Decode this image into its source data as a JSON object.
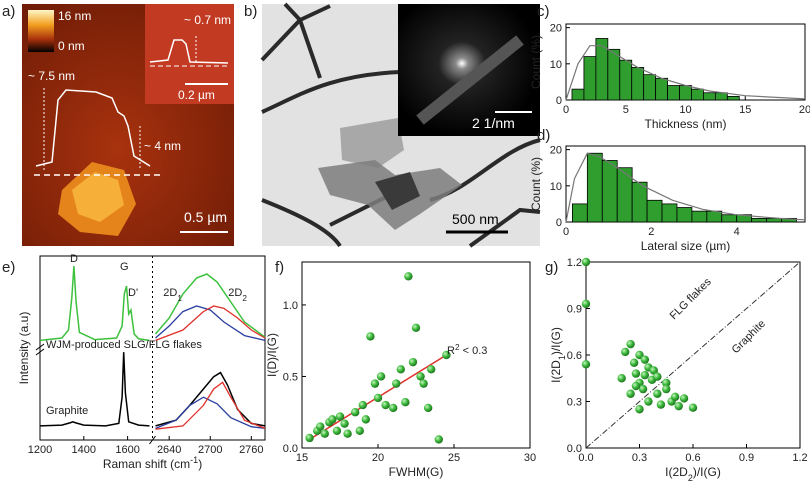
{
  "afm": {
    "label": "a)",
    "colorbar": [
      "16 nm",
      "0 nm"
    ],
    "height_labels": [
      "~ 7.5 nm",
      "~ 4 nm"
    ],
    "inset_height": "~ 0.7 nm",
    "inset_scale": "0.2 µm",
    "scale": "0.5 µm"
  },
  "tem": {
    "label": "b)",
    "diffraction_scale": "2 1/nm",
    "scale": "500 nm"
  },
  "chart_data": [
    {
      "type": "histogram",
      "label": "c)",
      "xlabel": "Thickness (nm)",
      "ylabel": "Count (%)",
      "bins": [
        0.5,
        1.5,
        2.5,
        3.5,
        4.5,
        5.5,
        6.5,
        7.5,
        8.5,
        9.5,
        10.5,
        11.5,
        12.5,
        13.5,
        14.5
      ],
      "values": [
        3,
        12,
        17,
        14,
        11,
        9,
        7,
        6,
        4,
        4,
        3,
        2,
        2,
        1
      ],
      "color": "#2f9e2f",
      "fit": {
        "x": [
          0,
          1,
          2,
          3,
          4,
          6,
          8,
          10,
          12,
          15,
          20
        ],
        "y": [
          0,
          10,
          15,
          15,
          13,
          9,
          6,
          4,
          2.5,
          1.2,
          0.3
        ],
        "color": "#777777"
      },
      "xlim": [
        0,
        20
      ],
      "ylim": [
        0,
        21
      ],
      "xticks": [
        0,
        5,
        10,
        15,
        20
      ],
      "yticks": [
        0,
        10,
        20
      ]
    },
    {
      "type": "histogram",
      "label": "d)",
      "xlabel": "Lateral size (µm)",
      "ylabel": "Count (%)",
      "bins": [
        0.15,
        0.5,
        0.85,
        1.2,
        1.55,
        1.9,
        2.25,
        2.6,
        2.95,
        3.3,
        3.65,
        4.0,
        4.35,
        4.7,
        5.05,
        5.4
      ],
      "values": [
        5,
        19,
        17,
        15,
        11,
        6,
        5,
        4,
        3,
        3,
        2,
        2,
        1,
        1,
        1
      ],
      "color": "#2f9e2f",
      "fit": {
        "x": [
          0,
          0.2,
          0.5,
          0.8,
          1.2,
          1.8,
          2.5,
          3.2,
          4,
          5,
          5.6
        ],
        "y": [
          0,
          12,
          19,
          18,
          15,
          10,
          6,
          3.5,
          2,
          1,
          0.6
        ],
        "color": "#777777"
      },
      "xlim": [
        0,
        5.6
      ],
      "ylim": [
        0,
        21
      ],
      "xticks": [
        0,
        2,
        4
      ],
      "yticks": [
        0,
        10,
        20
      ]
    },
    {
      "type": "spectra",
      "label": "e)",
      "ylabel": "Intensity (a.u)",
      "xlabel": [
        {
          "text": "Raman shift (cm"
        },
        {
          "sup": "-1"
        },
        {
          "text": ")"
        }
      ],
      "xaxes": [
        {
          "xlim": [
            1200,
            1700
          ],
          "xticks": [
            1200,
            1400,
            1600
          ]
        },
        {
          "xlim": [
            2620,
            2780
          ],
          "xticks": [
            2640,
            2700,
            2760
          ]
        }
      ],
      "traces": [
        {
          "label": "WJM-produced SLG/FLG flakes",
          "color": "#3cc13c",
          "low": {
            "x": [
              1200,
              1300,
              1330,
              1345,
              1355,
              1365,
              1380,
              1450,
              1550,
              1575,
              1585,
              1595,
              1605,
              1615,
              1620,
              1630,
              1650,
              1700
            ],
            "y": [
              0.02,
              0.05,
              0.15,
              0.55,
              0.95,
              0.5,
              0.12,
              0.03,
              0.05,
              0.2,
              0.6,
              0.7,
              0.35,
              0.4,
              0.3,
              0.1,
              0.04,
              0.02
            ]
          },
          "high": {
            "x": [
              2620,
              2640,
              2660,
              2680,
              2695,
              2710,
              2730,
              2750,
              2780
            ],
            "y": [
              0.1,
              0.3,
              0.6,
              0.8,
              0.85,
              0.75,
              0.5,
              0.25,
              0.06
            ]
          },
          "components": [
            {
              "color": "#2b3fa0",
              "x": [
                2620,
                2640,
                2660,
                2680,
                2700,
                2720,
                2750,
                2780
              ],
              "y": [
                0.05,
                0.2,
                0.38,
                0.45,
                0.4,
                0.25,
                0.08,
                0.02
              ]
            },
            {
              "color": "#e0302a",
              "x": [
                2620,
                2660,
                2690,
                2705,
                2720,
                2740,
                2760,
                2780
              ],
              "y": [
                0.02,
                0.15,
                0.38,
                0.45,
                0.42,
                0.3,
                0.15,
                0.05
              ]
            }
          ]
        },
        {
          "label": "Graphite",
          "color": "#000000",
          "low": {
            "x": [
              1200,
              1300,
              1340,
              1350,
              1360,
              1400,
              1500,
              1560,
              1575,
              1582,
              1590,
              1605,
              1650,
              1700
            ],
            "y": [
              0.05,
              0.06,
              0.09,
              0.1,
              0.09,
              0.06,
              0.05,
              0.08,
              0.4,
              0.95,
              0.45,
              0.1,
              0.06,
              0.05
            ]
          },
          "high": {
            "x": [
              2620,
              2650,
              2670,
              2690,
              2705,
              2715,
              2725,
              2740,
              2760,
              2780
            ],
            "y": [
              0.05,
              0.12,
              0.3,
              0.5,
              0.65,
              0.7,
              0.55,
              0.25,
              0.08,
              0.05
            ]
          },
          "components": [
            {
              "color": "#2b3fa0",
              "x": [
                2620,
                2650,
                2670,
                2690,
                2710,
                2730,
                2760,
                2780
              ],
              "y": [
                0.02,
                0.12,
                0.3,
                0.4,
                0.32,
                0.15,
                0.04,
                0.02
              ]
            },
            {
              "color": "#e0302a",
              "x": [
                2620,
                2660,
                2690,
                2705,
                2718,
                2730,
                2750,
                2780
              ],
              "y": [
                0.01,
                0.05,
                0.3,
                0.5,
                0.58,
                0.4,
                0.12,
                0.02
              ]
            }
          ]
        }
      ],
      "peak_labels": [
        {
          "text": "D",
          "x": 1355
        },
        {
          "text": "G",
          "x": 1585
        },
        {
          "text": "D'",
          "x": 1625
        }
      ],
      "band_labels": [
        {
          "text": "2D",
          "sub": "1",
          "x": 2645,
          "color": "#2b3fa0"
        },
        {
          "text": "2D",
          "sub": "2",
          "x": 2740,
          "color": "#e0302a"
        }
      ]
    },
    {
      "type": "scatter",
      "label": "f)",
      "xlabel": "FWHM(G)",
      "ylabel": "I(D)/I(G)",
      "color": "#3cb93c",
      "x": [
        15.5,
        16,
        16.2,
        16.5,
        16.8,
        17,
        17.3,
        17.5,
        17.8,
        18,
        18.5,
        18.8,
        19,
        19.2,
        19.5,
        19.8,
        20,
        20.2,
        20.5,
        21,
        21.2,
        21.5,
        21.8,
        22,
        22.3,
        22.5,
        22.8,
        23,
        23.3,
        23.5,
        24,
        24.5
      ],
      "y": [
        0.07,
        0.12,
        0.15,
        0.1,
        0.18,
        0.2,
        0.12,
        0.22,
        0.17,
        0.1,
        0.25,
        0.12,
        0.3,
        0.2,
        0.78,
        0.45,
        0.35,
        0.5,
        0.3,
        0.28,
        0.45,
        0.55,
        0.32,
        1.2,
        0.6,
        0.84,
        0.5,
        0.45,
        0.28,
        0.55,
        0.06,
        0.65
      ],
      "fit": {
        "x": [
          15.5,
          24.5
        ],
        "y": [
          0.06,
          0.65
        ],
        "color": "#e0302a"
      },
      "annotation": [
        {
          "text": "R"
        },
        {
          "sup": "2"
        },
        {
          "text": " < 0.3"
        }
      ],
      "annotation_color": "#e0302a",
      "xlim": [
        15,
        30
      ],
      "ylim": [
        0,
        1.3
      ],
      "xticks": [
        15,
        20,
        25,
        30
      ],
      "yticks": [
        {
          "value": 0,
          "label": "0.0"
        },
        {
          "value": 0.5,
          "label": "0.5"
        },
        {
          "value": 1,
          "label": "1.0"
        }
      ]
    },
    {
      "type": "scatter",
      "label": "g)",
      "color": "#3cb93c",
      "xlabel": [
        {
          "text": "I(2D"
        },
        {
          "sub": "2"
        },
        {
          "text": ")/I(G)"
        }
      ],
      "ylabel": [
        {
          "text": "I(2D"
        },
        {
          "sub": "1"
        },
        {
          "text": ")/I(G)"
        }
      ],
      "x": [
        0,
        0,
        0,
        0.2,
        0.22,
        0.25,
        0.27,
        0.28,
        0.3,
        0.3,
        0.32,
        0.33,
        0.35,
        0.35,
        0.37,
        0.38,
        0.4,
        0.4,
        0.42,
        0.45,
        0.48,
        0.5,
        0.52,
        0.55,
        0.6,
        0.25,
        0.3,
        0.28,
        0.45,
        0.33
      ],
      "y": [
        1.2,
        0.93,
        0.54,
        0.45,
        0.62,
        0.67,
        0.55,
        0.48,
        0.42,
        0.6,
        0.38,
        0.47,
        0.52,
        0.3,
        0.44,
        0.5,
        0.35,
        0.46,
        0.28,
        0.42,
        0.3,
        0.33,
        0.27,
        0.32,
        0.26,
        0.35,
        0.25,
        0.4,
        0.38,
        0.57
      ],
      "reference": {
        "x": [
          0,
          1.2
        ],
        "y": [
          0,
          1.2
        ],
        "color": "#333333"
      },
      "annotations": [
        {
          "text": "FLG flakes",
          "color": "#3cb93c"
        },
        {
          "text": "Graphite",
          "color": "#000000"
        }
      ],
      "xlim": [
        0,
        1.2
      ],
      "ylim": [
        0,
        1.2
      ],
      "xticks": [
        {
          "value": 0,
          "label": "0.0"
        },
        {
          "value": 0.3,
          "label": "0.3"
        },
        {
          "value": 0.6,
          "label": "0.6"
        },
        {
          "value": 0.9,
          "label": "0.9"
        },
        {
          "value": 1.2,
          "label": "1.2"
        }
      ],
      "yticks": [
        {
          "value": 0,
          "label": "0.0"
        },
        {
          "value": 0.3,
          "label": "0.3"
        },
        {
          "value": 0.6,
          "label": "0.6"
        },
        {
          "value": 0.9,
          "label": "0.9"
        },
        {
          "value": 1.2,
          "label": "1.2"
        }
      ]
    }
  ]
}
